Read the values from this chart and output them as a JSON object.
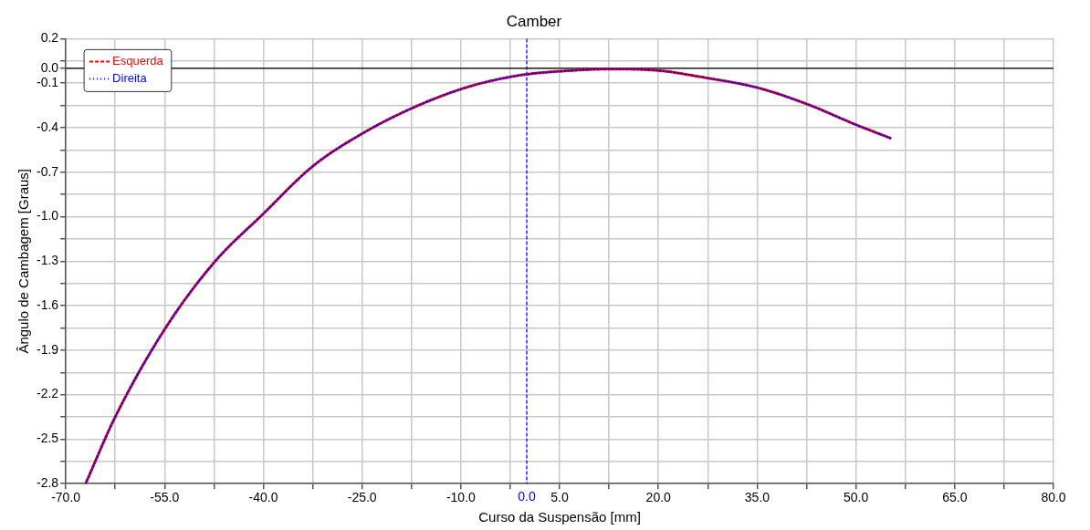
{
  "chart_data": {
    "type": "line",
    "title": "Camber",
    "xlabel": "Curso da Suspensão [mm]",
    "ylabel": "Ângulo de Cambagem [Graus]",
    "x": [
      -67,
      -62.5,
      -55,
      -47.5,
      -40,
      -32.5,
      -25,
      -17.5,
      -10,
      -5,
      0,
      5,
      12.5,
      20,
      27.5,
      35,
      42.5,
      50,
      55.2
    ],
    "series": [
      {
        "name": "Esquerda",
        "color": "#ff0000",
        "line_style": "dashed",
        "values": [
          -2.8,
          -2.35,
          -1.76,
          -1.31,
          -0.98,
          -0.66,
          -0.44,
          -0.27,
          -0.14,
          -0.08,
          -0.04,
          -0.02,
          -0.005,
          -0.015,
          -0.066,
          -0.13,
          -0.24,
          -0.38,
          -0.47
        ]
      },
      {
        "name": "Direita",
        "color": "#0000ff",
        "line_style": "dotted",
        "values": [
          -2.8,
          -2.35,
          -1.76,
          -1.31,
          -0.98,
          -0.66,
          -0.44,
          -0.27,
          -0.14,
          -0.08,
          -0.04,
          -0.02,
          -0.005,
          -0.015,
          -0.066,
          -0.13,
          -0.24,
          -0.38,
          -0.47
        ]
      }
    ],
    "xlim": [
      -70,
      80
    ],
    "xticks": [
      {
        "value": -70,
        "label": "-70.0"
      },
      {
        "value": -62.5,
        "label": null
      },
      {
        "value": -55,
        "label": "-55.0"
      },
      {
        "value": -47.5,
        "label": null
      },
      {
        "value": -40,
        "label": "-40.0"
      },
      {
        "value": -32.5,
        "label": null
      },
      {
        "value": -25,
        "label": "-25.0"
      },
      {
        "value": -17.5,
        "label": null
      },
      {
        "value": -10,
        "label": "-10.0"
      },
      {
        "value": -2.5,
        "label": null
      },
      {
        "value": 5,
        "label": "5.0"
      },
      {
        "value": 12.5,
        "label": null
      },
      {
        "value": 20,
        "label": "20.0"
      },
      {
        "value": 27.5,
        "label": null
      },
      {
        "value": 35,
        "label": "35.0"
      },
      {
        "value": 42.5,
        "label": null
      },
      {
        "value": 50,
        "label": "50.0"
      },
      {
        "value": 57.5,
        "label": null
      },
      {
        "value": 65,
        "label": "65.0"
      },
      {
        "value": 72.5,
        "label": null
      },
      {
        "value": 80,
        "label": "80.0"
      }
    ],
    "ylim": [
      -2.8,
      0.2
    ],
    "yticks": [
      {
        "value": -2.8,
        "label": "-2.8"
      },
      {
        "value": -2.65,
        "label": null
      },
      {
        "value": -2.5,
        "label": "-2.5"
      },
      {
        "value": -2.35,
        "label": null
      },
      {
        "value": -2.2,
        "label": "-2.2"
      },
      {
        "value": -2.05,
        "label": null
      },
      {
        "value": -1.9,
        "label": "-1.9"
      },
      {
        "value": -1.75,
        "label": null
      },
      {
        "value": -1.6,
        "label": "-1.6"
      },
      {
        "value": -1.45,
        "label": null
      },
      {
        "value": -1.3,
        "label": "-1.3"
      },
      {
        "value": -1.15,
        "label": null
      },
      {
        "value": -1,
        "label": "-1.0"
      },
      {
        "value": -0.85,
        "label": null
      },
      {
        "value": -0.7,
        "label": "-0.7"
      },
      {
        "value": -0.55,
        "label": null
      },
      {
        "value": -0.4,
        "label": "-0.4"
      },
      {
        "value": -0.25,
        "label": null
      },
      {
        "value": -0.1,
        "label": "-0.1"
      },
      {
        "value": 0,
        "label": "0.0"
      },
      {
        "value": 0.05,
        "label": null
      },
      {
        "value": 0.2,
        "label": "0.2"
      }
    ],
    "ref_lines": [
      {
        "axis": "x",
        "value": 0,
        "label": "0.0",
        "color": "#0000ff",
        "line_style": "dashed"
      },
      {
        "axis": "y",
        "value": 0,
        "color": "#000000",
        "line_style": "solid"
      }
    ],
    "grid": true,
    "legend": "top left",
    "marker": "none"
  }
}
